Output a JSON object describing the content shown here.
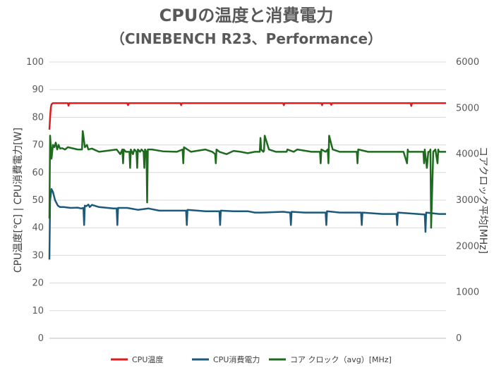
{
  "chart_data": {
    "type": "line",
    "title": "CPUの温度と消費電力",
    "subtitle": "（CINEBENCH R23、Performance）",
    "ylabel_left": "CPU温度[℃] | CPU消費電力[W]",
    "ylabel_right": "コアクロック平均[MHz]",
    "xlabel": "",
    "ylim_left": [
      0,
      100
    ],
    "ylim_right": [
      0,
      6000
    ],
    "yticks_left": [
      "0",
      "10",
      "20",
      "30",
      "40",
      "50",
      "60",
      "70",
      "80",
      "90",
      "100"
    ],
    "yticks_right": [
      "0",
      "1000",
      "2000",
      "3000",
      "4000",
      "5000",
      "6000"
    ],
    "grid": true,
    "legend_position": "bottom",
    "series": [
      {
        "name": "CPU温度",
        "axis": "left",
        "color": "#e31a1c",
        "x": [
          0,
          1,
          2,
          3,
          5,
          10,
          20,
          26,
          27,
          28,
          40,
          70,
          100,
          110,
          111,
          112,
          130,
          150,
          170,
          185,
          186,
          187,
          200,
          220,
          240,
          260,
          280,
          300,
          320,
          330,
          331,
          332,
          350,
          370,
          380,
          384,
          385,
          386,
          397,
          398,
          399,
          420,
          440,
          460,
          480,
          500,
          510,
          511,
          512,
          520,
          540,
          560
        ],
        "values": [
          75.5,
          80,
          83.5,
          84.7,
          85.1,
          85.1,
          85.1,
          85.1,
          84.2,
          85.1,
          85.1,
          85.1,
          85.1,
          85.1,
          84.4,
          85.1,
          85.1,
          85.1,
          85.1,
          85.1,
          84.4,
          85.1,
          85.1,
          85.1,
          85.1,
          85.1,
          85.1,
          85.1,
          85.1,
          85.1,
          84.4,
          85.1,
          85.1,
          85.1,
          85.1,
          85.1,
          84.4,
          85.1,
          85.1,
          84.5,
          85.1,
          85.1,
          85.1,
          85.1,
          85.1,
          85.1,
          85.1,
          84.1,
          85.1,
          85.1,
          85.1,
          85.1
        ]
      },
      {
        "name": "CPU消費電力",
        "axis": "left",
        "color": "#1b5a7a",
        "x": [
          0,
          1,
          3,
          5,
          8,
          10,
          12,
          15,
          20,
          30,
          40,
          45,
          48,
          49,
          50,
          52,
          55,
          57,
          60,
          70,
          90,
          95,
          96,
          97,
          110,
          125,
          140,
          155,
          193,
          194,
          195,
          220,
          240,
          241,
          242,
          260,
          280,
          290,
          300,
          330,
          340,
          341,
          342,
          360,
          375,
          390,
          391,
          392,
          410,
          430,
          440,
          441,
          442,
          470,
          490,
          491,
          492,
          520,
          530,
          531,
          532,
          550,
          555,
          560
        ],
        "values": [
          28.5,
          50,
          54,
          53,
          50,
          49,
          48,
          47.5,
          47.5,
          47.2,
          47.3,
          47,
          47.2,
          41,
          48,
          47.8,
          48.4,
          47.5,
          48.3,
          47.5,
          47,
          47,
          41,
          47.2,
          47.2,
          46.5,
          47,
          46.2,
          46.2,
          41,
          46.5,
          46,
          46,
          41,
          46.2,
          46,
          46,
          45.5,
          45.5,
          45.8,
          45.5,
          41,
          45.8,
          45.5,
          45.5,
          45.5,
          41,
          46,
          45.5,
          45.5,
          45.5,
          41,
          45.5,
          45,
          45,
          41,
          45.5,
          45,
          44.8,
          38.5,
          45.5,
          45,
          45,
          45
        ]
      },
      {
        "name": "コア クロック（avg）[MHz]",
        "axis": "right",
        "color": "#1e6b1e",
        "x": [
          0,
          1,
          3,
          5,
          7,
          9,
          11,
          13,
          15,
          18,
          22,
          26,
          40,
          46,
          47,
          48,
          50,
          53,
          55,
          60,
          70,
          80,
          95,
          100,
          103,
          104,
          105,
          108,
          110,
          113,
          114,
          115,
          118,
          120,
          123,
          124,
          125,
          128,
          130,
          133,
          134,
          135,
          137,
          138,
          139,
          145,
          160,
          180,
          188,
          189,
          190,
          200,
          220,
          230,
          234,
          235,
          236,
          240,
          250,
          260,
          270,
          280,
          290,
          297,
          298,
          299,
          302,
          303,
          304,
          310,
          320,
          330,
          334,
          335,
          336,
          345,
          350,
          370,
          382,
          383,
          384,
          390,
          393,
          394,
          395,
          400,
          410,
          420,
          430,
          434,
          435,
          436,
          450,
          460,
          470,
          480,
          500,
          505,
          506,
          507,
          512,
          513,
          514,
          520,
          528,
          529,
          530,
          533,
          535,
          537,
          538,
          539,
          542,
          545,
          548,
          549,
          550,
          553,
          556,
          560
        ],
        "values": [
          2600,
          4400,
          3900,
          4200,
          4150,
          4250,
          4100,
          4200,
          4120,
          4130,
          4100,
          4150,
          4100,
          4100,
          4500,
          4400,
          4150,
          4200,
          4100,
          4120,
          4050,
          4070,
          4100,
          4000,
          4100,
          3800,
          4100,
          4050,
          4050,
          4050,
          3700,
          4100,
          4000,
          4100,
          4050,
          3700,
          4100,
          4050,
          4100,
          4050,
          3700,
          4100,
          4050,
          2950,
          4100,
          4100,
          4060,
          4050,
          4100,
          3800,
          4150,
          4050,
          4100,
          4050,
          4000,
          3800,
          4100,
          4050,
          4000,
          4070,
          4050,
          4020,
          4050,
          4050,
          4350,
          4100,
          4050,
          4070,
          4400,
          4100,
          4050,
          4050,
          4050,
          4050,
          4100,
          4050,
          4100,
          4050,
          4050,
          3800,
          4100,
          4050,
          4100,
          3800,
          4400,
          4100,
          4050,
          4050,
          4050,
          4050,
          3800,
          4100,
          4050,
          4050,
          4050,
          4050,
          4050,
          3800,
          4100,
          4050,
          4050,
          4050,
          4050,
          4050,
          4050,
          3800,
          4100,
          3700,
          4050,
          4050,
          4100,
          2400,
          4050,
          4100,
          3800,
          4100,
          4050,
          4050,
          4050,
          4050
        ]
      }
    ]
  }
}
